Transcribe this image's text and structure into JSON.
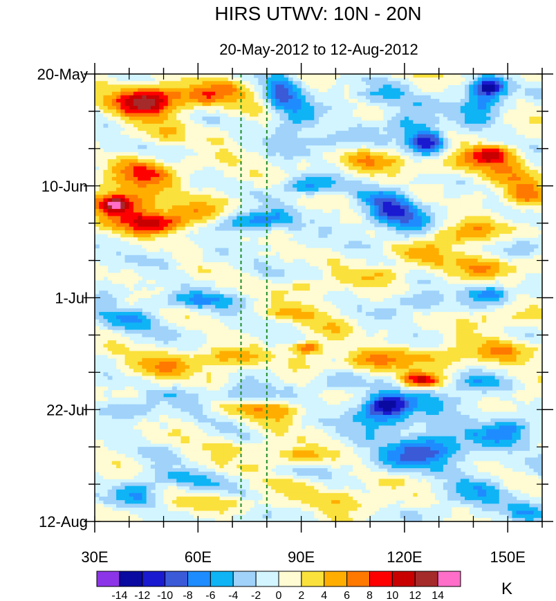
{
  "chart_data": {
    "type": "heatmap",
    "title": "HIRS UTWV: 10N - 20N",
    "subtitle": "20-May-2012 to 12-Aug-2012",
    "x_axis": {
      "range": [
        30,
        160
      ],
      "ticks": [
        {
          "value": 30,
          "label": "30E"
        },
        {
          "value": 60,
          "label": "60E"
        },
        {
          "value": 90,
          "label": "90E"
        },
        {
          "value": 120,
          "label": "120E"
        },
        {
          "value": 150,
          "label": "150E"
        }
      ]
    },
    "y_axis": {
      "range_days": [
        0,
        84
      ],
      "ticks": [
        {
          "value": 0,
          "label": "20-May"
        },
        {
          "value": 21,
          "label": "10-Jun"
        },
        {
          "value": 42,
          "label": "1-Jul"
        },
        {
          "value": 63,
          "label": "22-Jul"
        },
        {
          "value": 84,
          "label": "12-Aug"
        }
      ]
    },
    "reference_lines_lon": [
      72.5,
      80
    ],
    "colorbar": {
      "unit": "K",
      "labels": [
        "-14",
        "-12",
        "-10",
        "-8",
        "-6",
        "-4",
        "-2",
        "0",
        "2",
        "4",
        "6",
        "8",
        "10",
        "12",
        "14"
      ],
      "levels": [
        -14,
        -12,
        -10,
        -8,
        -6,
        -4,
        -2,
        0,
        2,
        4,
        6,
        8,
        10,
        12,
        14
      ],
      "colors": [
        "#8c35e8",
        "#0a0aa0",
        "#1a1ad0",
        "#3a5ad8",
        "#1e8cff",
        "#0fb4f5",
        "#a0d2fa",
        "#d2f5ff",
        "#fffbd2",
        "#fae13c",
        "#ffae00",
        "#ff7800",
        "#ff0000",
        "#c80000",
        "#a52a2a",
        "#ff6ec8"
      ]
    },
    "features": [
      {
        "lon": 46,
        "day": 4.5,
        "value": 9,
        "sx": 8,
        "sy": 2.4
      },
      {
        "lon": 42,
        "day": 6.5,
        "value": 6,
        "sx": 9,
        "sy": 3
      },
      {
        "lon": 60,
        "day": 4.5,
        "value": 6,
        "sx": 8,
        "sy": 2
      },
      {
        "lon": 68,
        "day": 2.5,
        "value": 4,
        "sx": 6,
        "sy": 2
      },
      {
        "lon": 45,
        "day": 18.5,
        "value": 7,
        "sx": 9,
        "sy": 2.5
      },
      {
        "lon": 38,
        "day": 24,
        "value": 7,
        "sx": 10,
        "sy": 3
      },
      {
        "lon": 47,
        "day": 28,
        "value": 11,
        "sx": 10,
        "sy": 2.2
      },
      {
        "lon": 60,
        "day": 26,
        "value": 5,
        "sx": 10,
        "sy": 3
      },
      {
        "lon": 36,
        "day": 24.5,
        "value": 9,
        "sx": 4,
        "sy": 1.5
      },
      {
        "lon": 50,
        "day": 11,
        "value": 2,
        "sx": 12,
        "sy": 2
      },
      {
        "lon": 88,
        "day": 8,
        "value": -6,
        "sx": 6,
        "sy": 4
      },
      {
        "lon": 84,
        "day": 3,
        "value": -7,
        "sx": 5,
        "sy": 2.5
      },
      {
        "lon": 110,
        "day": 4,
        "value": -5,
        "sx": 8,
        "sy": 2.5
      },
      {
        "lon": 145,
        "day": 2.5,
        "value": -12,
        "sx": 5,
        "sy": 1.8
      },
      {
        "lon": 142,
        "day": 6,
        "value": -6,
        "sx": 7,
        "sy": 3
      },
      {
        "lon": 127,
        "day": 13,
        "value": -12,
        "sx": 5,
        "sy": 2.2
      },
      {
        "lon": 122,
        "day": 10,
        "value": -6,
        "sx": 7,
        "sy": 3
      },
      {
        "lon": 145,
        "day": 15,
        "value": 10,
        "sx": 8,
        "sy": 1.8
      },
      {
        "lon": 150,
        "day": 19,
        "value": 5,
        "sx": 8,
        "sy": 2.5
      },
      {
        "lon": 133,
        "day": 17,
        "value": 4,
        "sx": 7,
        "sy": 2
      },
      {
        "lon": 115,
        "day": 25,
        "value": -8,
        "sx": 8,
        "sy": 3
      },
      {
        "lon": 121,
        "day": 28,
        "value": -5,
        "sx": 8,
        "sy": 3
      },
      {
        "lon": 76,
        "day": 27.5,
        "value": -7,
        "sx": 12,
        "sy": 1.8
      },
      {
        "lon": 92,
        "day": 21,
        "value": -6,
        "sx": 8,
        "sy": 1.8
      },
      {
        "lon": 110,
        "day": 16,
        "value": 4,
        "sx": 10,
        "sy": 2
      },
      {
        "lon": 98,
        "day": 12,
        "value": -4,
        "sx": 10,
        "sy": 2
      },
      {
        "lon": 155,
        "day": 23,
        "value": 7,
        "sx": 6,
        "sy": 2
      },
      {
        "lon": 137,
        "day": 30,
        "value": 6,
        "sx": 10,
        "sy": 2
      },
      {
        "lon": 124,
        "day": 34,
        "value": 4,
        "sx": 10,
        "sy": 2
      },
      {
        "lon": 110,
        "day": 38,
        "value": 4,
        "sx": 10,
        "sy": 2
      },
      {
        "lon": 145,
        "day": 36,
        "value": 6,
        "sx": 10,
        "sy": 2
      },
      {
        "lon": 145,
        "day": 41,
        "value": -8,
        "sx": 6,
        "sy": 1.8
      },
      {
        "lon": 155,
        "day": 33,
        "value": -4,
        "sx": 6,
        "sy": 2
      },
      {
        "lon": 90,
        "day": 40,
        "value": 3,
        "sx": 12,
        "sy": 1.6
      },
      {
        "lon": 120,
        "day": 43,
        "value": -4,
        "sx": 10,
        "sy": 2
      },
      {
        "lon": 50,
        "day": 35,
        "value": -2,
        "sx": 14,
        "sy": 2
      },
      {
        "lon": 60,
        "day": 42.5,
        "value": -6,
        "sx": 14,
        "sy": 1.6
      },
      {
        "lon": 40,
        "day": 46,
        "value": -5,
        "sx": 10,
        "sy": 1.8
      },
      {
        "lon": 85,
        "day": 45,
        "value": 4,
        "sx": 8,
        "sy": 1.5
      },
      {
        "lon": 100,
        "day": 48,
        "value": 2,
        "sx": 12,
        "sy": 2
      },
      {
        "lon": 92,
        "day": 51.5,
        "value": 9,
        "sx": 5,
        "sy": 1.3
      },
      {
        "lon": 70,
        "day": 53,
        "value": 5,
        "sx": 14,
        "sy": 1.7
      },
      {
        "lon": 50,
        "day": 55,
        "value": 4,
        "sx": 14,
        "sy": 2
      },
      {
        "lon": 110,
        "day": 54,
        "value": 5,
        "sx": 8,
        "sy": 2
      },
      {
        "lon": 125,
        "day": 57.5,
        "value": 10,
        "sx": 6,
        "sy": 1.5
      },
      {
        "lon": 125,
        "day": 53,
        "value": 5,
        "sx": 10,
        "sy": 2
      },
      {
        "lon": 145,
        "day": 52,
        "value": 5,
        "sx": 12,
        "sy": 2
      },
      {
        "lon": 140,
        "day": 58,
        "value": -5,
        "sx": 10,
        "sy": 2
      },
      {
        "lon": 150,
        "day": 46,
        "value": 3,
        "sx": 10,
        "sy": 2
      },
      {
        "lon": 115,
        "day": 62,
        "value": -10,
        "sx": 6,
        "sy": 2
      },
      {
        "lon": 113,
        "day": 64,
        "value": -7,
        "sx": 9,
        "sy": 3
      },
      {
        "lon": 130,
        "day": 62,
        "value": -4,
        "sx": 10,
        "sy": 2.5
      },
      {
        "lon": 128,
        "day": 70,
        "value": -7,
        "sx": 10,
        "sy": 3
      },
      {
        "lon": 148,
        "day": 67,
        "value": -6,
        "sx": 10,
        "sy": 2.5
      },
      {
        "lon": 118,
        "day": 72,
        "value": -5,
        "sx": 12,
        "sy": 2.5
      },
      {
        "lon": 100,
        "day": 58,
        "value": -4,
        "sx": 8,
        "sy": 2
      },
      {
        "lon": 85,
        "day": 63,
        "value": 4,
        "sx": 12,
        "sy": 1.5
      },
      {
        "lon": 65,
        "day": 60,
        "value": -4,
        "sx": 12,
        "sy": 1.7
      },
      {
        "lon": 40,
        "day": 63,
        "value": -4,
        "sx": 8,
        "sy": 2
      },
      {
        "lon": 75,
        "day": 70,
        "value": 3,
        "sx": 12,
        "sy": 1.5
      },
      {
        "lon": 90,
        "day": 72,
        "value": 5,
        "sx": 8,
        "sy": 1.5
      },
      {
        "lon": 55,
        "day": 76,
        "value": -4,
        "sx": 12,
        "sy": 1.8
      },
      {
        "lon": 42,
        "day": 79,
        "value": -6,
        "sx": 6,
        "sy": 2
      },
      {
        "lon": 70,
        "day": 81,
        "value": 3,
        "sx": 14,
        "sy": 1.5
      },
      {
        "lon": 105,
        "day": 80,
        "value": 4,
        "sx": 10,
        "sy": 1.8
      },
      {
        "lon": 140,
        "day": 78,
        "value": -4,
        "sx": 12,
        "sy": 2.5
      },
      {
        "lon": 155,
        "day": 82,
        "value": -4,
        "sx": 6,
        "sy": 2
      },
      {
        "lon": 35,
        "day": 40,
        "value": -3,
        "sx": 6,
        "sy": 2
      },
      {
        "lon": 155,
        "day": 60,
        "value": 3,
        "sx": 6,
        "sy": 2
      }
    ]
  }
}
